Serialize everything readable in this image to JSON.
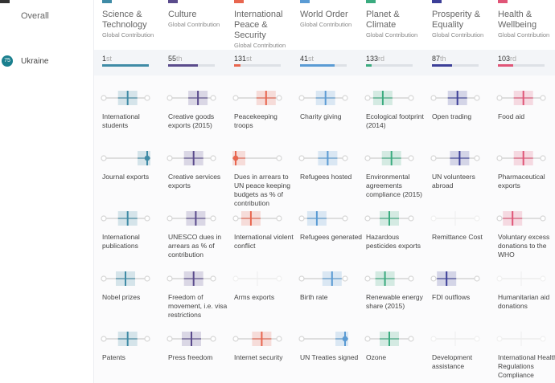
{
  "sidebar": {
    "heading": "Overall",
    "rank": "75",
    "country": "Ukraine"
  },
  "categories": [
    {
      "title": "Science & Technology",
      "subtitle": "Global Contribution",
      "color": "#3f8ba6",
      "rank": "1",
      "suffix": "st",
      "indicators": [
        {
          "label": "International students",
          "position": 0.55
        },
        {
          "label": "Journal exports",
          "position": 1.0
        },
        {
          "label": "International publications",
          "position": 0.55
        },
        {
          "label": "Nobel prizes",
          "position": 0.5
        },
        {
          "label": "Patents",
          "position": 0.55
        }
      ]
    },
    {
      "title": "Culture",
      "subtitle": "Global Contribution",
      "color": "#5a4b8c",
      "rank": "55",
      "suffix": "th",
      "indicators": [
        {
          "label": "Creative goods exports (2015)",
          "position": 0.65
        },
        {
          "label": "Creative services exports",
          "position": 0.55
        },
        {
          "label": "UNESCO dues in arrears as % of contribution",
          "position": 0.6
        },
        {
          "label": "Freedom of movement, i.e. visa restrictions",
          "position": 0.55
        },
        {
          "label": "Press freedom",
          "position": 0.5
        }
      ]
    },
    {
      "title": "International Peace & Security",
      "subtitle": "Global Contribution",
      "color": "#e8664f",
      "rank": "131",
      "suffix": "st",
      "indicators": [
        {
          "label": "Peacekeeping troops",
          "position": 0.7
        },
        {
          "label": "Dues in arrears to UN peace keeping budgets as % of contribution",
          "position": 0.0
        },
        {
          "label": "International violent conflict",
          "position": 0.35
        },
        {
          "label": "Arms exports",
          "position": null
        },
        {
          "label": "Internet security",
          "position": 0.6
        }
      ]
    },
    {
      "title": "World Order",
      "subtitle": "Global Contribution",
      "color": "#5a9bd4",
      "rank": "41",
      "suffix": "st",
      "indicators": [
        {
          "label": "Charity giving",
          "position": 0.55
        },
        {
          "label": "Refugees hosted",
          "position": 0.6
        },
        {
          "label": "Refugees generated",
          "position": 0.35
        },
        {
          "label": "Birth rate",
          "position": 0.7
        },
        {
          "label": "UN Treaties signed",
          "position": 1.0
        }
      ]
    },
    {
      "title": "Planet & Climate",
      "subtitle": "Global Contribution",
      "color": "#3aab7f",
      "rank": "133",
      "suffix": "rd",
      "indicators": [
        {
          "label": "Ecological footprint (2014)",
          "position": 0.35
        },
        {
          "label": "Environmental agreements compliance (2015)",
          "position": 0.55
        },
        {
          "label": "Hazardous pesticides exports",
          "position": 0.5
        },
        {
          "label": "Renewable energy share (2015)",
          "position": 0.4
        },
        {
          "label": "Ozone",
          "position": 0.5
        }
      ]
    },
    {
      "title": "Prosperity & Equality",
      "subtitle": "Global Contribution",
      "color": "#3c3f98",
      "rank": "87",
      "suffix": "th",
      "indicators": [
        {
          "label": "Open trading",
          "position": 0.55
        },
        {
          "label": "UN volunteers abroad",
          "position": 0.6
        },
        {
          "label": "Remittance Cost",
          "position": null
        },
        {
          "label": "FDI outflows",
          "position": 0.3
        },
        {
          "label": "Development assistance",
          "position": null
        }
      ]
    },
    {
      "title": "Health & Wellbeing",
      "subtitle": "Global Contribution",
      "color": "#e05577",
      "rank": "103",
      "suffix": "rd",
      "indicators": [
        {
          "label": "Food aid",
          "position": 0.55
        },
        {
          "label": "Pharmaceutical exports",
          "position": 0.55
        },
        {
          "label": "Voluntary excess donations to the WHO",
          "position": 0.3
        },
        {
          "label": "Humanitarian aid donations",
          "position": null
        },
        {
          "label": "International Health Regulations Compliance",
          "position": null
        }
      ]
    }
  ]
}
